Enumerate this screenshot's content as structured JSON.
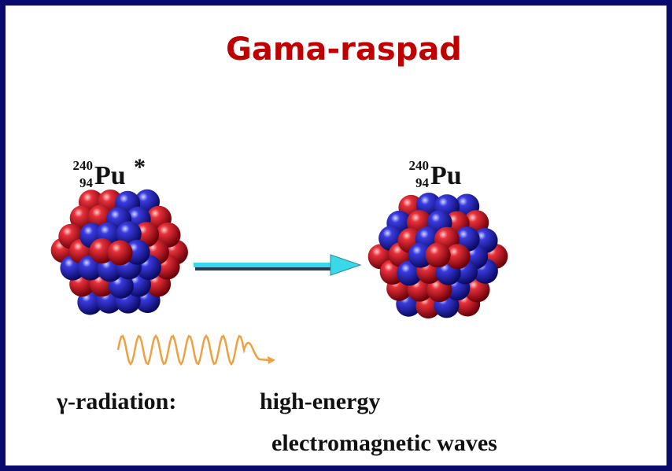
{
  "title": "Gama-raspad",
  "left_nucleus": {
    "mass_number": "240",
    "atomic_number": "94",
    "symbol": "Pu",
    "excited_mark": "*"
  },
  "right_nucleus": {
    "mass_number": "240",
    "atomic_number": "94",
    "symbol": "Pu"
  },
  "caption": {
    "term": "γ-radiation:",
    "line1": "high-energy",
    "line2": "electromagnetic waves"
  }
}
